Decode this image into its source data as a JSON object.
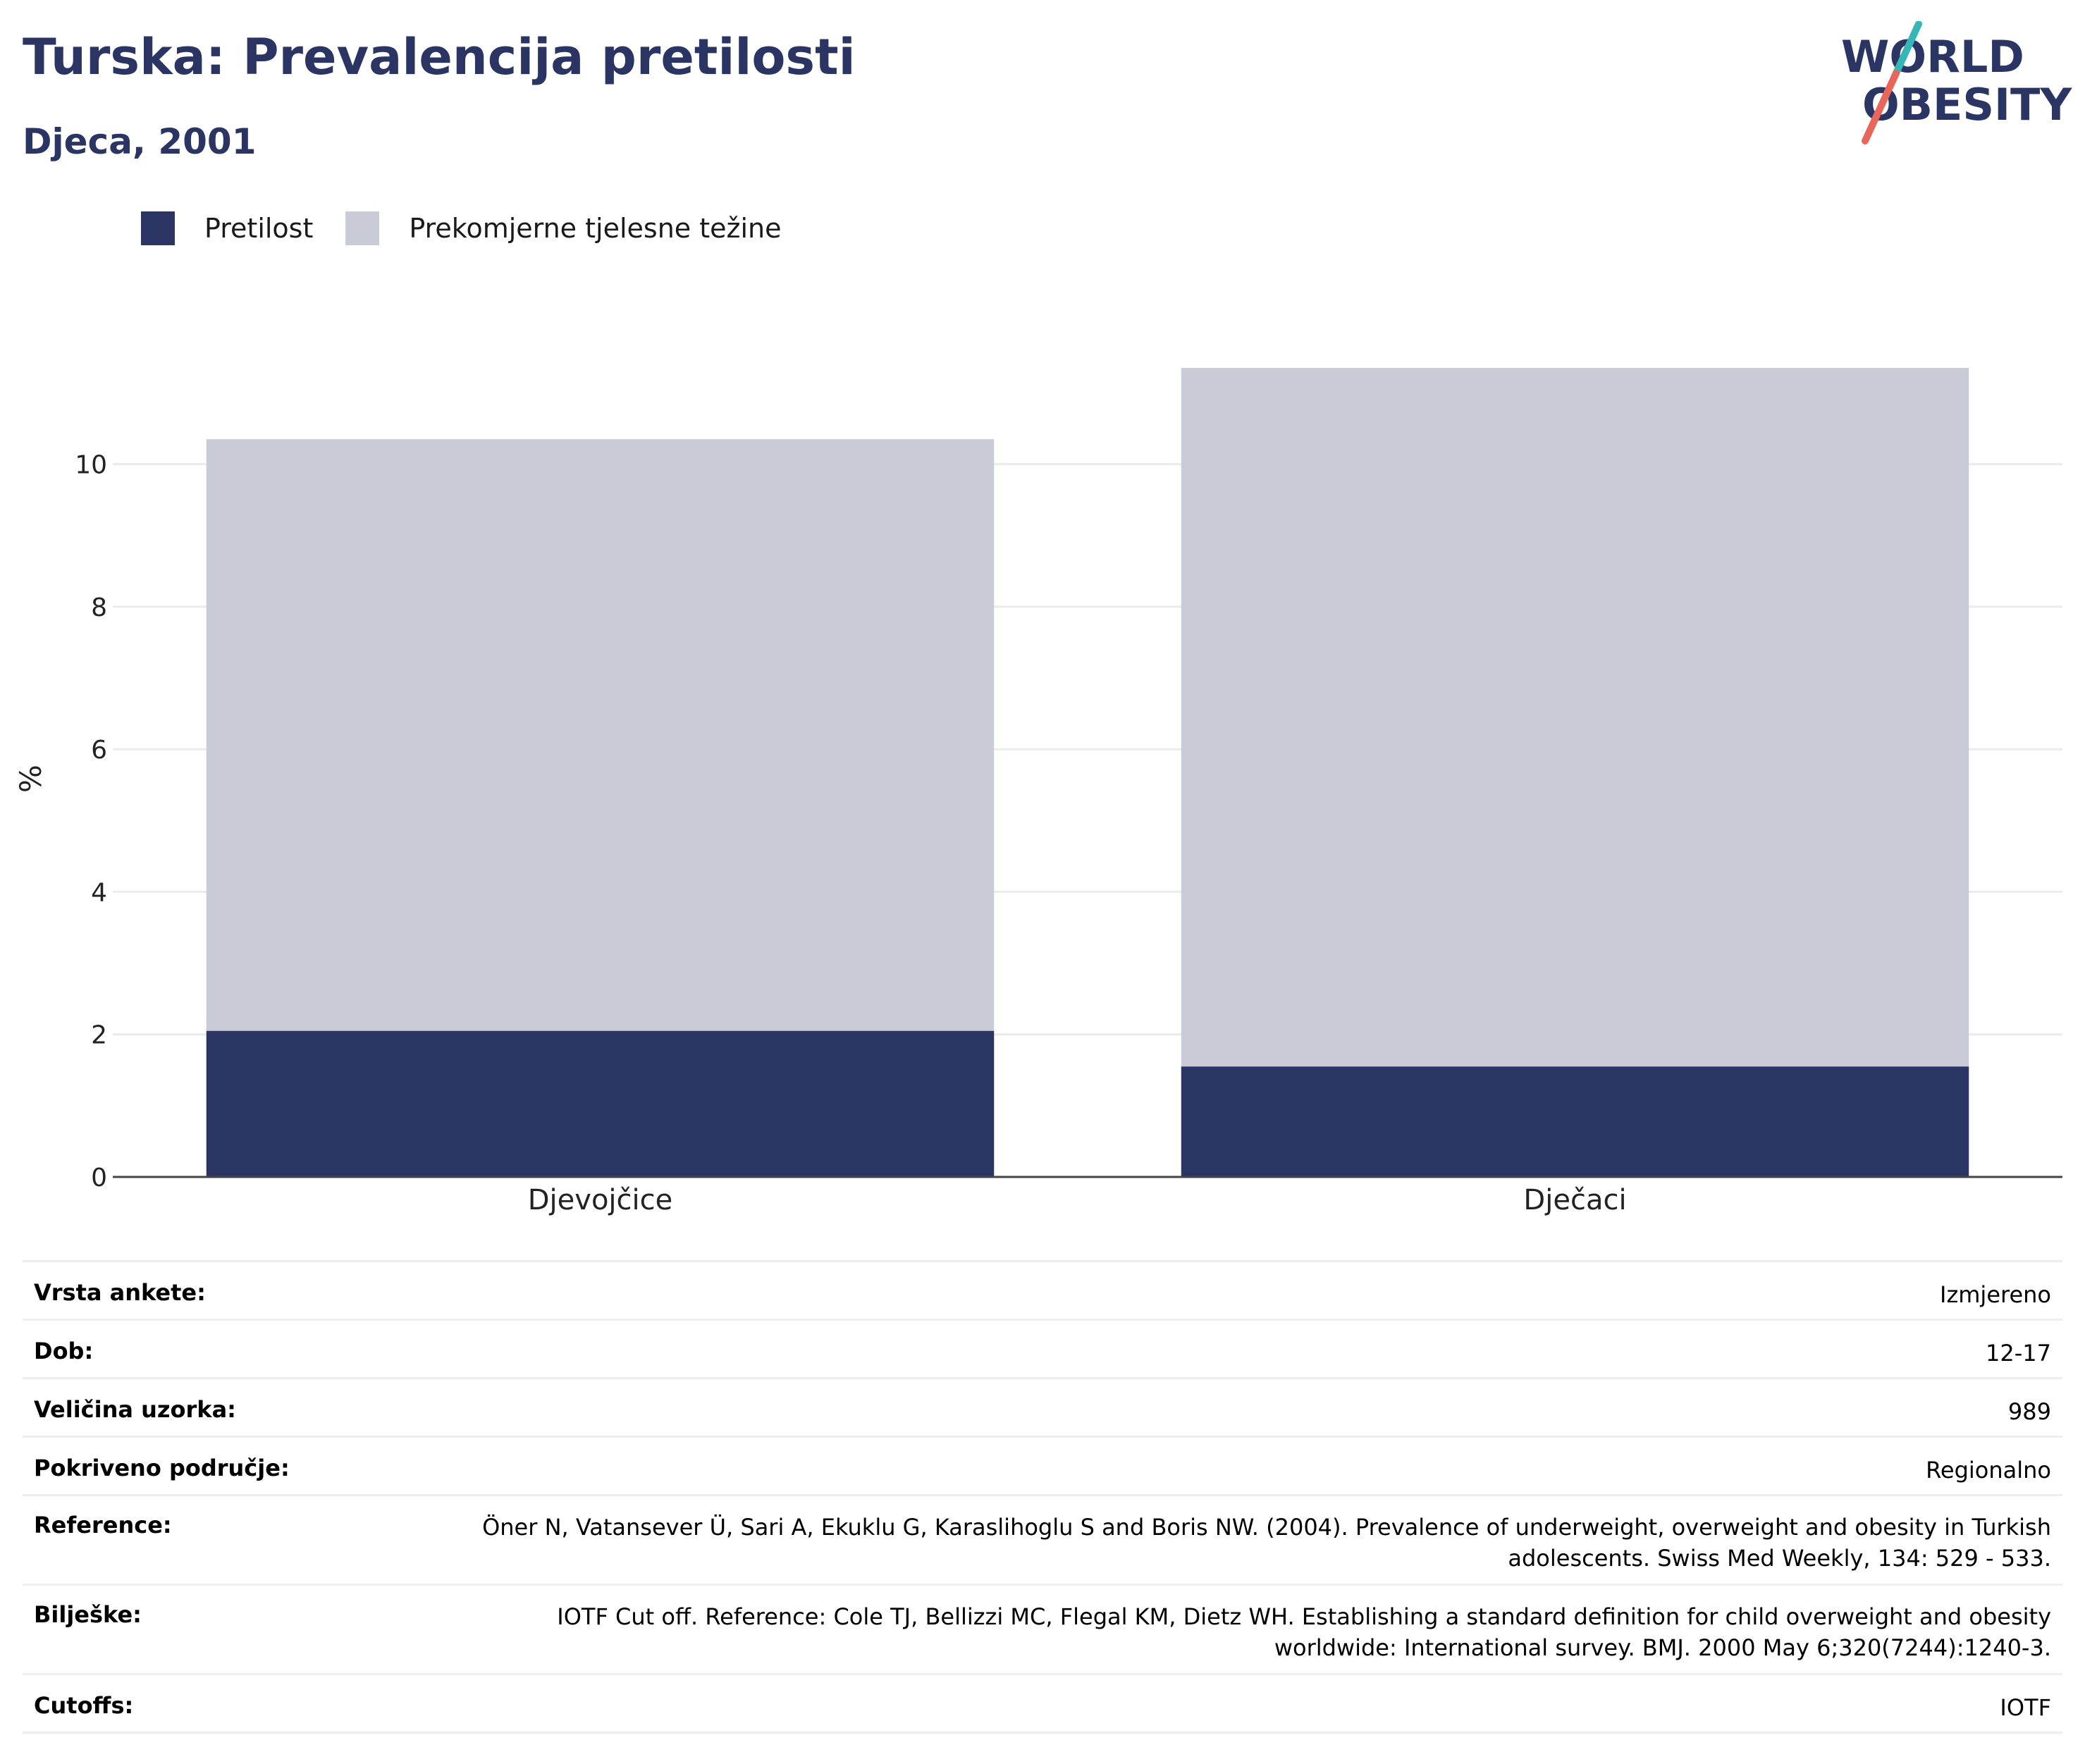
{
  "header": {
    "title": "Turska: Prevalencija pretilosti",
    "subtitle": "Djeca, 2001"
  },
  "logo": {
    "line1": "WORLD",
    "line2": "OBESITY"
  },
  "legend": [
    {
      "label": "Pretilost",
      "color": "#2a3563"
    },
    {
      "label": "Prekomjerne tjelesne težine",
      "color": "#c9cbd7"
    }
  ],
  "chart_data": {
    "type": "bar",
    "stacked": true,
    "categories": [
      "Djevojčice",
      "Dječaci"
    ],
    "series": [
      {
        "name": "Pretilost",
        "values": [
          2.05,
          1.55
        ],
        "color": "#2a3563"
      },
      {
        "name": "Prekomjerne tjelesne težine",
        "values": [
          8.3,
          9.8
        ],
        "color": "#c9cbd7"
      }
    ],
    "ylabel": "%",
    "xlabel": "",
    "yticks": [
      0,
      2,
      4,
      6,
      8,
      10
    ],
    "ylim": [
      0,
      11.37
    ],
    "grid": true,
    "legend_position": "top-left"
  },
  "meta": [
    {
      "label": "Vrsta ankete:",
      "value": "Izmjereno"
    },
    {
      "label": "Dob:",
      "value": "12-17"
    },
    {
      "label": "Veličina uzorka:",
      "value": "989"
    },
    {
      "label": "Pokriveno područje:",
      "value": "Regionalno"
    },
    {
      "label": "Reference:",
      "value": "Öner N, Vatansever Ü, Sari A, Ekuklu G, Karaslihoglu S and Boris NW. (2004). Prevalence of underweight, overweight and obesity in Turkish adolescents. Swiss Med Weekly, 134: 529 - 533."
    },
    {
      "label": "Bilješke:",
      "value": "IOTF Cut off. Reference: Cole TJ, Bellizzi MC, Flegal KM, Dietz WH. Establishing a standard definition for child overweight and obesity worldwide: International survey. BMJ. 2000 May 6;320(7244):1240-3."
    },
    {
      "label": "Cutoffs:",
      "value": "IOTF"
    }
  ]
}
